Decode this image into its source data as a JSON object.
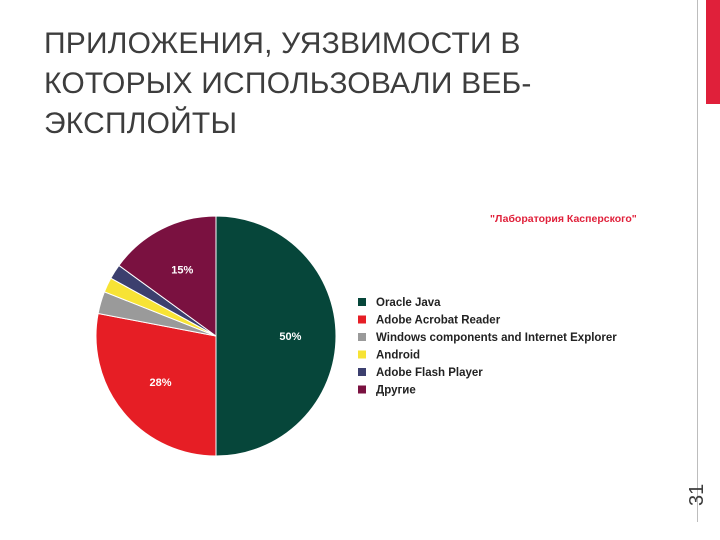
{
  "title_lines": [
    "ПРИЛОЖЕНИЯ, УЯЗВИМОСТИ В",
    "КОТОРЫХ ИСПОЛЬЗОВАЛИ ВЕБ-",
    "ЭКСПЛОЙТЫ"
  ],
  "page_number": "31",
  "chart_data": {
    "type": "pie",
    "source": "\"Лаборатория Касперского\"",
    "slices": [
      {
        "name": "Oracle Java",
        "value": 50,
        "label": "50%",
        "color": "#06463a"
      },
      {
        "name": "Adobe Acrobat Reader",
        "value": 28,
        "label": "28%",
        "color": "#e61e25"
      },
      {
        "name": "Windows components and Internet Explorer",
        "value": 3,
        "label": "3%",
        "color": "#9a9a9a"
      },
      {
        "name": "Android",
        "value": 2,
        "label": "2%",
        "color": "#f7e335"
      },
      {
        "name": "Adobe Flash Player",
        "value": 2,
        "label": "2%",
        "color": "#3c3f6e"
      },
      {
        "name": "Другие",
        "value": 15,
        "label": "15%",
        "color": "#7a1140"
      }
    ]
  }
}
